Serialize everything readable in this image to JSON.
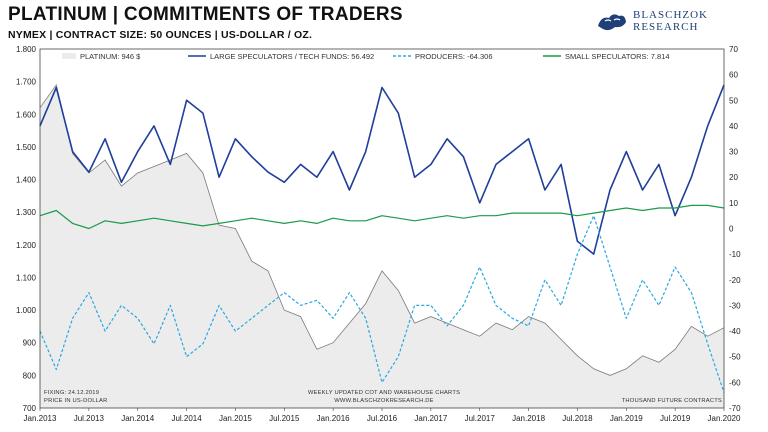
{
  "header": {
    "title": "PLATINUM | COMMITMENTS OF TRADERS",
    "subtitle": "NYMEX | CONTRACT SIZE: 50 OUNCES | US-DOLLAR / OZ.",
    "logo_line1": "BLASCHZOK",
    "logo_line2": "RESEARCH"
  },
  "footer": {
    "fixing": "FIXING: 24.12.2019",
    "price_unit": "PRICE IN US-DOLLAR",
    "center1": "WEEKLY UPDATED COT AND WAREHOUSE CHARTS",
    "center2": "WWW.BLASCHZOKRESEARCH.DE",
    "right": "THOUSAND FUTURE CONTRACTS"
  },
  "colors": {
    "platinum_fill": "#ececec",
    "platinum_line": "#7a7a7a",
    "large_speculators": "#1f3f9a",
    "producers": "#29a8e0",
    "small_speculators": "#1a9a4a"
  },
  "chart_data": {
    "type": "line",
    "x": [
      "2013-01",
      "2013-03",
      "2013-05",
      "2013-07",
      "2013-09",
      "2013-11",
      "2014-01",
      "2014-03",
      "2014-05",
      "2014-07",
      "2014-09",
      "2014-11",
      "2015-01",
      "2015-03",
      "2015-05",
      "2015-07",
      "2015-09",
      "2015-11",
      "2016-01",
      "2016-03",
      "2016-05",
      "2016-07",
      "2016-09",
      "2016-11",
      "2017-01",
      "2017-03",
      "2017-05",
      "2017-07",
      "2017-09",
      "2017-11",
      "2018-01",
      "2018-03",
      "2018-05",
      "2018-07",
      "2018-09",
      "2018-11",
      "2019-01",
      "2019-03",
      "2019-05",
      "2019-07",
      "2019-09",
      "2019-11",
      "2019-12"
    ],
    "x_ticks": [
      "Jan.2013",
      "Jul.2013",
      "Jan.2014",
      "Jul.2014",
      "Jan.2015",
      "Jul.2015",
      "Jan.2016",
      "Jul.2016",
      "Jan.2017",
      "Jul.2017",
      "Jan.2018",
      "Jul.2018",
      "Jan.2019",
      "Jul.2019",
      "Jan.2020"
    ],
    "y_left_ticks": [
      "700",
      "800",
      "900",
      "1.000",
      "1.100",
      "1.200",
      "1.300",
      "1.400",
      "1.500",
      "1.600",
      "1.700",
      "1.800"
    ],
    "y_left_range": [
      700,
      1800
    ],
    "y_right_ticks": [
      "-70",
      "-60",
      "-50",
      "-40",
      "-30",
      "-20",
      "-10",
      "0",
      "10",
      "20",
      "30",
      "40",
      "50",
      "60",
      "70"
    ],
    "y_right_range": [
      -70,
      70
    ],
    "legend_position": "top",
    "series": [
      {
        "name": "PLATINUM: 946 $",
        "axis": "left",
        "style": "area",
        "values": [
          1620,
          1690,
          1480,
          1420,
          1460,
          1380,
          1420,
          1440,
          1460,
          1480,
          1420,
          1260,
          1250,
          1150,
          1120,
          1000,
          980,
          880,
          900,
          960,
          1020,
          1120,
          1060,
          960,
          980,
          960,
          940,
          920,
          960,
          940,
          980,
          960,
          910,
          860,
          820,
          800,
          820,
          860,
          840,
          880,
          950,
          920,
          946
        ]
      },
      {
        "name": "LARGE SPECULATORS / TECH FUNDS: 56.492",
        "axis": "right",
        "style": "line",
        "values": [
          40,
          55,
          30,
          22,
          35,
          18,
          30,
          40,
          25,
          50,
          45,
          20,
          35,
          28,
          22,
          18,
          25,
          20,
          30,
          15,
          30,
          55,
          45,
          20,
          25,
          35,
          28,
          10,
          25,
          30,
          35,
          15,
          25,
          -5,
          -10,
          15,
          30,
          15,
          25,
          5,
          20,
          40,
          56
        ]
      },
      {
        "name": "PRODUCERS: -64.306",
        "axis": "right",
        "style": "dashed",
        "values": [
          -40,
          -55,
          -35,
          -25,
          -40,
          -30,
          -35,
          -45,
          -30,
          -50,
          -45,
          -30,
          -40,
          -35,
          -30,
          -25,
          -30,
          -28,
          -35,
          -25,
          -35,
          -60,
          -50,
          -30,
          -30,
          -38,
          -30,
          -15,
          -30,
          -35,
          -38,
          -20,
          -30,
          -10,
          5,
          -15,
          -35,
          -20,
          -30,
          -15,
          -25,
          -45,
          -64
        ]
      },
      {
        "name": "SMALL SPECULATORS: 7.814",
        "axis": "right",
        "style": "line",
        "values": [
          5,
          7,
          2,
          0,
          3,
          2,
          3,
          4,
          3,
          2,
          1,
          2,
          3,
          4,
          3,
          2,
          3,
          2,
          4,
          3,
          3,
          5,
          4,
          3,
          4,
          5,
          4,
          5,
          5,
          6,
          6,
          6,
          6,
          5,
          6,
          7,
          8,
          7,
          8,
          8,
          9,
          9,
          8
        ]
      }
    ]
  }
}
